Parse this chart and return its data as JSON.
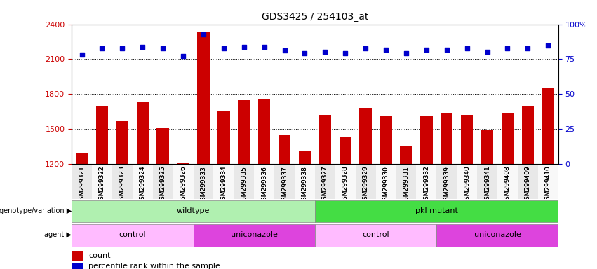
{
  "title": "GDS3425 / 254103_at",
  "samples": [
    "GSM299321",
    "GSM299322",
    "GSM299323",
    "GSM299324",
    "GSM299325",
    "GSM299326",
    "GSM299333",
    "GSM299334",
    "GSM299335",
    "GSM299336",
    "GSM299337",
    "GSM299338",
    "GSM299327",
    "GSM299328",
    "GSM299329",
    "GSM299330",
    "GSM299331",
    "GSM299332",
    "GSM299339",
    "GSM299340",
    "GSM299341",
    "GSM299408",
    "GSM299409",
    "GSM299410"
  ],
  "counts": [
    1290,
    1695,
    1570,
    1730,
    1510,
    1215,
    2340,
    1660,
    1750,
    1760,
    1450,
    1310,
    1620,
    1430,
    1680,
    1610,
    1350,
    1610,
    1640,
    1620,
    1490,
    1640,
    1700,
    1850
  ],
  "percentile": [
    78,
    83,
    83,
    84,
    83,
    77,
    93,
    83,
    84,
    84,
    81,
    79,
    80,
    79,
    83,
    82,
    79,
    82,
    82,
    83,
    80,
    83,
    83,
    85
  ],
  "ylim_left": [
    1200,
    2400
  ],
  "ylim_right": [
    0,
    100
  ],
  "yticks_left": [
    1200,
    1500,
    1800,
    2100,
    2400
  ],
  "yticks_right": [
    0,
    25,
    50,
    75,
    100
  ],
  "bar_color": "#cc0000",
  "marker_color": "#0000cc",
  "background_color": "#ffffff",
  "groups": [
    {
      "label": "wildtype",
      "start": 0,
      "end": 12,
      "color": "#b0f0b0"
    },
    {
      "label": "pkl mutant",
      "start": 12,
      "end": 24,
      "color": "#44dd44"
    }
  ],
  "agents": [
    {
      "label": "control",
      "start": 0,
      "end": 6,
      "color": "#ffbbff"
    },
    {
      "label": "uniconazole",
      "start": 6,
      "end": 12,
      "color": "#dd44dd"
    },
    {
      "label": "control",
      "start": 12,
      "end": 18,
      "color": "#ffbbff"
    },
    {
      "label": "uniconazole",
      "start": 18,
      "end": 24,
      "color": "#dd44dd"
    }
  ],
  "legend_count_color": "#cc0000",
  "legend_marker_color": "#0000cc"
}
